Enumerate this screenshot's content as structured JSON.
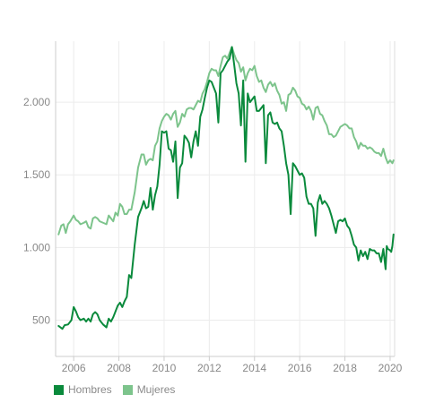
{
  "chart_data": {
    "type": "line",
    "title": "",
    "xlabel": "",
    "ylabel": "",
    "xlim": [
      2005.2,
      2020.2
    ],
    "ylim": [
      250,
      2420
    ],
    "grid": true,
    "legend_position": "bottom-left",
    "x_ticks": [
      2006,
      2008,
      2010,
      2012,
      2014,
      2016,
      2018,
      2020
    ],
    "x_tick_labels": [
      "2006",
      "2008",
      "2010",
      "2012",
      "2014",
      "2016",
      "2018",
      "2020"
    ],
    "y_ticks": [
      500,
      1000,
      1500,
      2000
    ],
    "y_tick_labels": [
      "500",
      "1.000",
      "1.500",
      "2.000"
    ],
    "series": [
      {
        "name": "Hombres",
        "color": "#0a8a3c",
        "points": [
          [
            2005.33,
            460
          ],
          [
            2005.5,
            440
          ],
          [
            2005.6,
            465
          ],
          [
            2005.75,
            470
          ],
          [
            2005.9,
            500
          ],
          [
            2006.0,
            590
          ],
          [
            2006.1,
            560
          ],
          [
            2006.2,
            520
          ],
          [
            2006.3,
            500
          ],
          [
            2006.45,
            510
          ],
          [
            2006.55,
            490
          ],
          [
            2006.65,
            510
          ],
          [
            2006.75,
            490
          ],
          [
            2006.85,
            540
          ],
          [
            2006.95,
            555
          ],
          [
            2007.05,
            540
          ],
          [
            2007.15,
            500
          ],
          [
            2007.3,
            470
          ],
          [
            2007.45,
            450
          ],
          [
            2007.55,
            510
          ],
          [
            2007.65,
            490
          ],
          [
            2007.75,
            520
          ],
          [
            2007.85,
            560
          ],
          [
            2007.95,
            600
          ],
          [
            2008.05,
            620
          ],
          [
            2008.15,
            590
          ],
          [
            2008.25,
            630
          ],
          [
            2008.35,
            660
          ],
          [
            2008.45,
            810
          ],
          [
            2008.55,
            790
          ],
          [
            2008.7,
            1020
          ],
          [
            2008.85,
            1210
          ],
          [
            2009.0,
            1270
          ],
          [
            2009.1,
            1320
          ],
          [
            2009.2,
            1270
          ],
          [
            2009.3,
            1280
          ],
          [
            2009.4,
            1410
          ],
          [
            2009.5,
            1260
          ],
          [
            2009.6,
            1360
          ],
          [
            2009.7,
            1420
          ],
          [
            2009.8,
            1570
          ],
          [
            2009.9,
            1800
          ],
          [
            2010.0,
            1790
          ],
          [
            2010.1,
            1800
          ],
          [
            2010.2,
            1680
          ],
          [
            2010.3,
            1670
          ],
          [
            2010.4,
            1590
          ],
          [
            2010.5,
            1730
          ],
          [
            2010.6,
            1340
          ],
          [
            2010.7,
            1550
          ],
          [
            2010.8,
            1580
          ],
          [
            2010.9,
            1770
          ],
          [
            2011.0,
            1750
          ],
          [
            2011.1,
            1720
          ],
          [
            2011.2,
            1620
          ],
          [
            2011.3,
            1730
          ],
          [
            2011.4,
            1800
          ],
          [
            2011.5,
            1700
          ],
          [
            2011.6,
            1900
          ],
          [
            2011.7,
            1950
          ],
          [
            2011.8,
            2030
          ],
          [
            2011.9,
            2100
          ],
          [
            2012.0,
            2150
          ],
          [
            2012.1,
            2140
          ],
          [
            2012.2,
            2100
          ],
          [
            2012.3,
            2060
          ],
          [
            2012.4,
            1860
          ],
          [
            2012.5,
            2200
          ],
          [
            2012.6,
            2220
          ],
          [
            2012.7,
            2250
          ],
          [
            2012.8,
            2280
          ],
          [
            2012.9,
            2300
          ],
          [
            2013.0,
            2380
          ],
          [
            2013.1,
            2260
          ],
          [
            2013.2,
            2130
          ],
          [
            2013.3,
            2060
          ],
          [
            2013.4,
            1840
          ],
          [
            2013.5,
            2150
          ],
          [
            2013.6,
            1590
          ],
          [
            2013.7,
            2060
          ],
          [
            2013.8,
            2000
          ],
          [
            2013.9,
            2020
          ],
          [
            2014.0,
            2040
          ],
          [
            2014.1,
            1940
          ],
          [
            2014.2,
            1940
          ],
          [
            2014.3,
            1960
          ],
          [
            2014.4,
            1980
          ],
          [
            2014.5,
            1580
          ],
          [
            2014.6,
            1910
          ],
          [
            2014.7,
            1930
          ],
          [
            2014.8,
            1860
          ],
          [
            2014.9,
            1850
          ],
          [
            2015.0,
            1860
          ],
          [
            2015.1,
            1820
          ],
          [
            2015.2,
            1800
          ],
          [
            2015.3,
            1700
          ],
          [
            2015.4,
            1580
          ],
          [
            2015.5,
            1500
          ],
          [
            2015.6,
            1230
          ],
          [
            2015.7,
            1580
          ],
          [
            2015.8,
            1560
          ],
          [
            2015.9,
            1530
          ],
          [
            2016.0,
            1500
          ],
          [
            2016.1,
            1510
          ],
          [
            2016.2,
            1480
          ],
          [
            2016.3,
            1350
          ],
          [
            2016.4,
            1300
          ],
          [
            2016.5,
            1300
          ],
          [
            2016.6,
            1270
          ],
          [
            2016.7,
            1080
          ],
          [
            2016.8,
            1310
          ],
          [
            2016.9,
            1360
          ],
          [
            2017.0,
            1300
          ],
          [
            2017.1,
            1320
          ],
          [
            2017.2,
            1300
          ],
          [
            2017.3,
            1270
          ],
          [
            2017.4,
            1220
          ],
          [
            2017.5,
            1160
          ],
          [
            2017.6,
            1100
          ],
          [
            2017.7,
            1180
          ],
          [
            2017.8,
            1190
          ],
          [
            2017.9,
            1180
          ],
          [
            2018.0,
            1200
          ],
          [
            2018.1,
            1150
          ],
          [
            2018.2,
            1130
          ],
          [
            2018.3,
            1080
          ],
          [
            2018.4,
            1020
          ],
          [
            2018.5,
            1000
          ],
          [
            2018.6,
            910
          ],
          [
            2018.7,
            980
          ],
          [
            2018.8,
            940
          ],
          [
            2018.9,
            970
          ],
          [
            2019.0,
            920
          ],
          [
            2019.1,
            990
          ],
          [
            2019.2,
            980
          ],
          [
            2019.3,
            980
          ],
          [
            2019.4,
            960
          ],
          [
            2019.5,
            960
          ],
          [
            2019.6,
            900
          ],
          [
            2019.7,
            990
          ],
          [
            2019.8,
            850
          ],
          [
            2019.85,
            1010
          ],
          [
            2019.9,
            990
          ],
          [
            2020.0,
            980
          ],
          [
            2020.05,
            970
          ],
          [
            2020.1,
            1010
          ],
          [
            2020.15,
            1090
          ]
        ]
      },
      {
        "name": "Mujeres",
        "color": "#7dc48c",
        "points": [
          [
            2005.33,
            1090
          ],
          [
            2005.45,
            1150
          ],
          [
            2005.55,
            1160
          ],
          [
            2005.65,
            1100
          ],
          [
            2005.75,
            1160
          ],
          [
            2005.85,
            1180
          ],
          [
            2006.0,
            1220
          ],
          [
            2006.1,
            1190
          ],
          [
            2006.2,
            1180
          ],
          [
            2006.3,
            1160
          ],
          [
            2006.45,
            1170
          ],
          [
            2006.55,
            1180
          ],
          [
            2006.65,
            1140
          ],
          [
            2006.75,
            1130
          ],
          [
            2006.85,
            1200
          ],
          [
            2006.95,
            1210
          ],
          [
            2007.05,
            1200
          ],
          [
            2007.15,
            1180
          ],
          [
            2007.3,
            1170
          ],
          [
            2007.45,
            1160
          ],
          [
            2007.55,
            1220
          ],
          [
            2007.65,
            1200
          ],
          [
            2007.75,
            1180
          ],
          [
            2007.85,
            1240
          ],
          [
            2007.95,
            1220
          ],
          [
            2008.05,
            1300
          ],
          [
            2008.15,
            1280
          ],
          [
            2008.25,
            1230
          ],
          [
            2008.35,
            1230
          ],
          [
            2008.45,
            1260
          ],
          [
            2008.55,
            1260
          ],
          [
            2008.7,
            1380
          ],
          [
            2008.85,
            1550
          ],
          [
            2009.0,
            1640
          ],
          [
            2009.1,
            1640
          ],
          [
            2009.2,
            1570
          ],
          [
            2009.3,
            1600
          ],
          [
            2009.4,
            1610
          ],
          [
            2009.5,
            1600
          ],
          [
            2009.6,
            1700
          ],
          [
            2009.7,
            1730
          ],
          [
            2009.8,
            1820
          ],
          [
            2009.9,
            1870
          ],
          [
            2010.0,
            1900
          ],
          [
            2010.1,
            1920
          ],
          [
            2010.2,
            1910
          ],
          [
            2010.3,
            1880
          ],
          [
            2010.4,
            1920
          ],
          [
            2010.5,
            1940
          ],
          [
            2010.6,
            1830
          ],
          [
            2010.7,
            1860
          ],
          [
            2010.8,
            1920
          ],
          [
            2010.9,
            1900
          ],
          [
            2011.0,
            1950
          ],
          [
            2011.1,
            1960
          ],
          [
            2011.2,
            1960
          ],
          [
            2011.3,
            1950
          ],
          [
            2011.4,
            1980
          ],
          [
            2011.5,
            2010
          ],
          [
            2011.6,
            2000
          ],
          [
            2011.7,
            2060
          ],
          [
            2011.8,
            2090
          ],
          [
            2011.9,
            2140
          ],
          [
            2012.0,
            2200
          ],
          [
            2012.1,
            2230
          ],
          [
            2012.2,
            2220
          ],
          [
            2012.3,
            2220
          ],
          [
            2012.4,
            2180
          ],
          [
            2012.5,
            2250
          ],
          [
            2012.6,
            2310
          ],
          [
            2012.7,
            2320
          ],
          [
            2012.8,
            2300
          ],
          [
            2012.9,
            2340
          ],
          [
            2013.0,
            2380
          ],
          [
            2013.1,
            2330
          ],
          [
            2013.2,
            2290
          ],
          [
            2013.3,
            2270
          ],
          [
            2013.4,
            2210
          ],
          [
            2013.5,
            2240
          ],
          [
            2013.6,
            2150
          ],
          [
            2013.7,
            2200
          ],
          [
            2013.8,
            2230
          ],
          [
            2013.9,
            2220
          ],
          [
            2014.0,
            2250
          ],
          [
            2014.1,
            2180
          ],
          [
            2014.2,
            2140
          ],
          [
            2014.3,
            2150
          ],
          [
            2014.4,
            2100
          ],
          [
            2014.5,
            2070
          ],
          [
            2014.6,
            2120
          ],
          [
            2014.7,
            2140
          ],
          [
            2014.8,
            2110
          ],
          [
            2014.9,
            2130
          ],
          [
            2015.0,
            2080
          ],
          [
            2015.1,
            2050
          ],
          [
            2015.2,
            1990
          ],
          [
            2015.3,
            2000
          ],
          [
            2015.4,
            1940
          ],
          [
            2015.5,
            2050
          ],
          [
            2015.6,
            2060
          ],
          [
            2015.7,
            2100
          ],
          [
            2015.8,
            2080
          ],
          [
            2015.9,
            2040
          ],
          [
            2016.0,
            2030
          ],
          [
            2016.1,
            1990
          ],
          [
            2016.2,
            1980
          ],
          [
            2016.3,
            1950
          ],
          [
            2016.4,
            1970
          ],
          [
            2016.5,
            1940
          ],
          [
            2016.6,
            1880
          ],
          [
            2016.7,
            1960
          ],
          [
            2016.8,
            1970
          ],
          [
            2016.9,
            1920
          ],
          [
            2017.0,
            1910
          ],
          [
            2017.1,
            1870
          ],
          [
            2017.2,
            1840
          ],
          [
            2017.3,
            1780
          ],
          [
            2017.4,
            1780
          ],
          [
            2017.5,
            1760
          ],
          [
            2017.6,
            1770
          ],
          [
            2017.7,
            1800
          ],
          [
            2017.8,
            1830
          ],
          [
            2017.9,
            1840
          ],
          [
            2018.0,
            1850
          ],
          [
            2018.1,
            1840
          ],
          [
            2018.2,
            1820
          ],
          [
            2018.3,
            1820
          ],
          [
            2018.4,
            1760
          ],
          [
            2018.5,
            1730
          ],
          [
            2018.6,
            1680
          ],
          [
            2018.7,
            1720
          ],
          [
            2018.8,
            1700
          ],
          [
            2018.9,
            1700
          ],
          [
            2019.0,
            1680
          ],
          [
            2019.1,
            1690
          ],
          [
            2019.2,
            1680
          ],
          [
            2019.3,
            1660
          ],
          [
            2019.4,
            1650
          ],
          [
            2019.5,
            1650
          ],
          [
            2019.6,
            1630
          ],
          [
            2019.7,
            1680
          ],
          [
            2019.8,
            1620
          ],
          [
            2019.9,
            1580
          ],
          [
            2020.0,
            1600
          ],
          [
            2020.1,
            1580
          ],
          [
            2020.15,
            1600
          ]
        ]
      }
    ]
  }
}
